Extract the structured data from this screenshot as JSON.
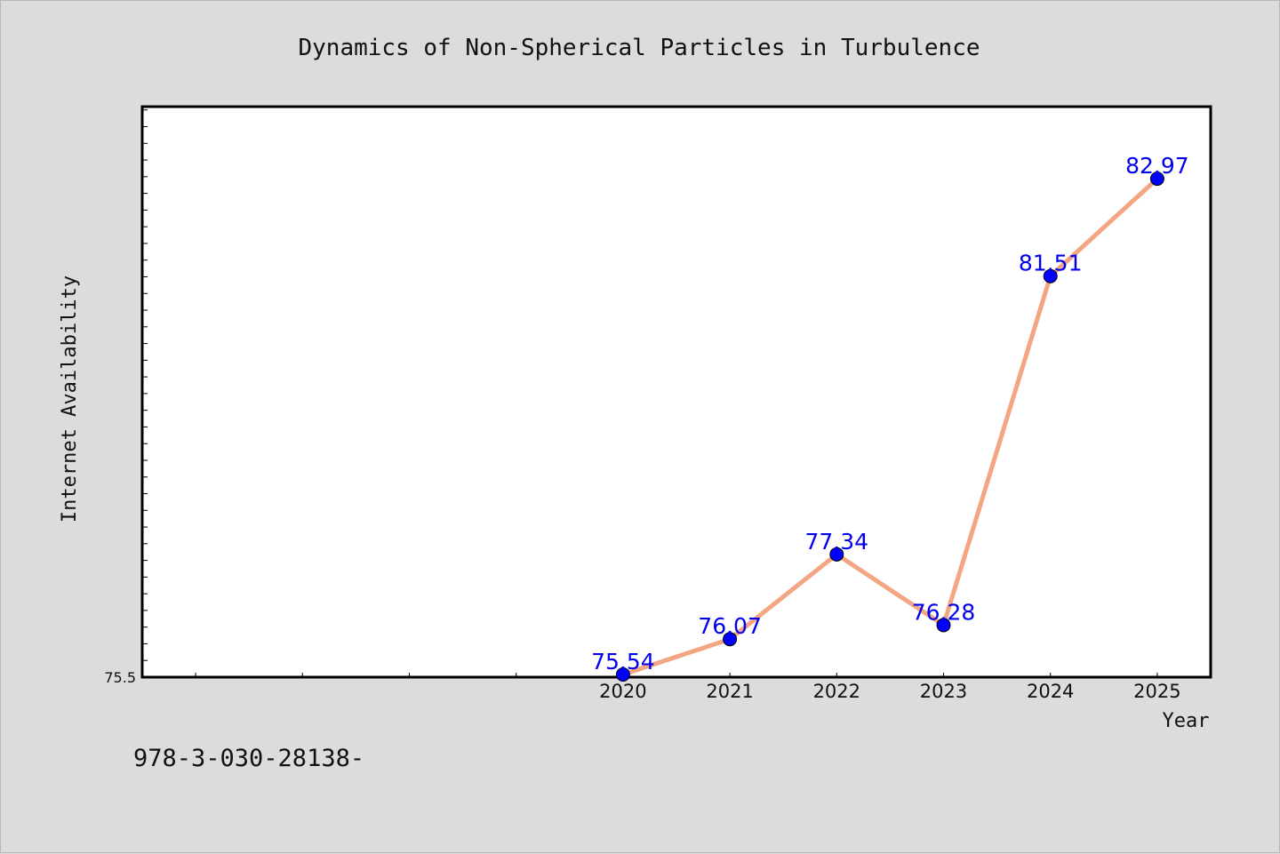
{
  "chart_data": {
    "type": "line",
    "title": "Dynamics of Non-Spherical Particles in Turbulence",
    "xlabel": "Year",
    "ylabel": "Internet Availability",
    "categories": [
      "2020",
      "2021",
      "2022",
      "2023",
      "2024",
      "2025"
    ],
    "series": [
      {
        "values": [
          75.54,
          76.07,
          77.34,
          76.28,
          81.51,
          82.97
        ],
        "labels": [
          "75.54",
          "76.07",
          "77.34",
          "76.28",
          "81.51",
          "82.97"
        ]
      }
    ],
    "ytick_labels": [
      "75.5"
    ],
    "ylim": [
      75.5,
      84.05
    ],
    "xlim": [
      2015.5,
      2025.5
    ],
    "grid": false,
    "colors": {
      "line": "#f4a582",
      "marker": "#0000ff",
      "data_label": "#0000ee"
    }
  },
  "footer_text": "978-3-030-28138-"
}
